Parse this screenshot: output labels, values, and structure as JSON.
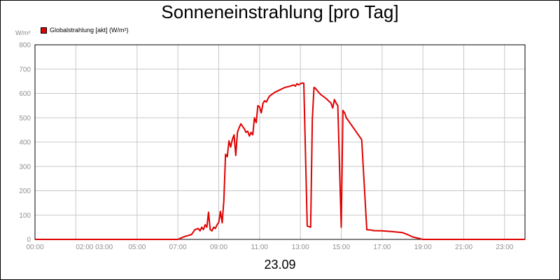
{
  "chart_data": {
    "type": "line",
    "title": "Sonneneinstrahlung [pro Tag]",
    "ylabel": "W/m²",
    "date_label": "23.09",
    "legend": {
      "placement": "top-left",
      "label": "Globalstrahlung [akt] (W/m²)"
    },
    "grid": true,
    "ylim": [
      0,
      800
    ],
    "y_ticks": [
      0,
      100,
      200,
      300,
      400,
      500,
      600,
      700,
      800
    ],
    "xlim": [
      "00:00",
      "24:00"
    ],
    "x_ticks": [
      "00:00",
      "02:00 03:00",
      "05:00",
      "07:00",
      "09:00",
      "11:00",
      "13:00",
      "15:00",
      "17:00",
      "19:00",
      "21:00",
      "23:00"
    ],
    "series": [
      {
        "name": "Globalstrahlung [akt] (W/m²)",
        "color": "#e00000",
        "x": [
          "00:00",
          "07:00",
          "07:20",
          "07:40",
          "07:50",
          "08:00",
          "08:05",
          "08:10",
          "08:15",
          "08:20",
          "08:25",
          "08:30",
          "08:35",
          "08:40",
          "08:45",
          "08:50",
          "08:55",
          "09:00",
          "09:05",
          "09:10",
          "09:15",
          "09:20",
          "09:25",
          "09:30",
          "09:35",
          "09:40",
          "09:45",
          "09:50",
          "09:55",
          "10:00",
          "10:05",
          "10:10",
          "10:15",
          "10:20",
          "10:25",
          "10:30",
          "10:35",
          "10:40",
          "10:45",
          "10:50",
          "10:55",
          "11:00",
          "11:05",
          "11:10",
          "11:15",
          "11:20",
          "11:25",
          "11:30",
          "11:45",
          "12:00",
          "12:15",
          "12:30",
          "12:40",
          "12:45",
          "12:50",
          "12:55",
          "13:00",
          "13:05",
          "13:10",
          "13:20",
          "13:30",
          "13:35",
          "13:40",
          "13:45",
          "13:50",
          "14:00",
          "14:15",
          "14:30",
          "14:35",
          "14:40",
          "14:45",
          "14:50",
          "15:00",
          "15:05",
          "15:10",
          "15:15",
          "15:30",
          "15:45",
          "16:00",
          "16:15",
          "16:30",
          "16:35",
          "17:00",
          "17:30",
          "18:00",
          "18:15",
          "18:30",
          "19:00",
          "19:30",
          "20:00",
          "24:00"
        ],
        "values": [
          0,
          0,
          12,
          20,
          40,
          45,
          35,
          50,
          40,
          60,
          50,
          112,
          40,
          35,
          50,
          45,
          60,
          70,
          115,
          68,
          160,
          350,
          340,
          405,
          380,
          410,
          430,
          345,
          440,
          460,
          475,
          465,
          455,
          440,
          445,
          425,
          440,
          430,
          500,
          480,
          550,
          545,
          520,
          560,
          570,
          565,
          580,
          590,
          605,
          615,
          625,
          630,
          635,
          630,
          640,
          635,
          640,
          643,
          642,
          55,
          50,
          495,
          625,
          620,
          610,
          595,
          580,
          560,
          540,
          575,
          560,
          550,
          50,
          530,
          520,
          500,
          470,
          440,
          410,
          40,
          38,
          36,
          35,
          32,
          28,
          20,
          10,
          0,
          0,
          0,
          0
        ]
      }
    ]
  }
}
